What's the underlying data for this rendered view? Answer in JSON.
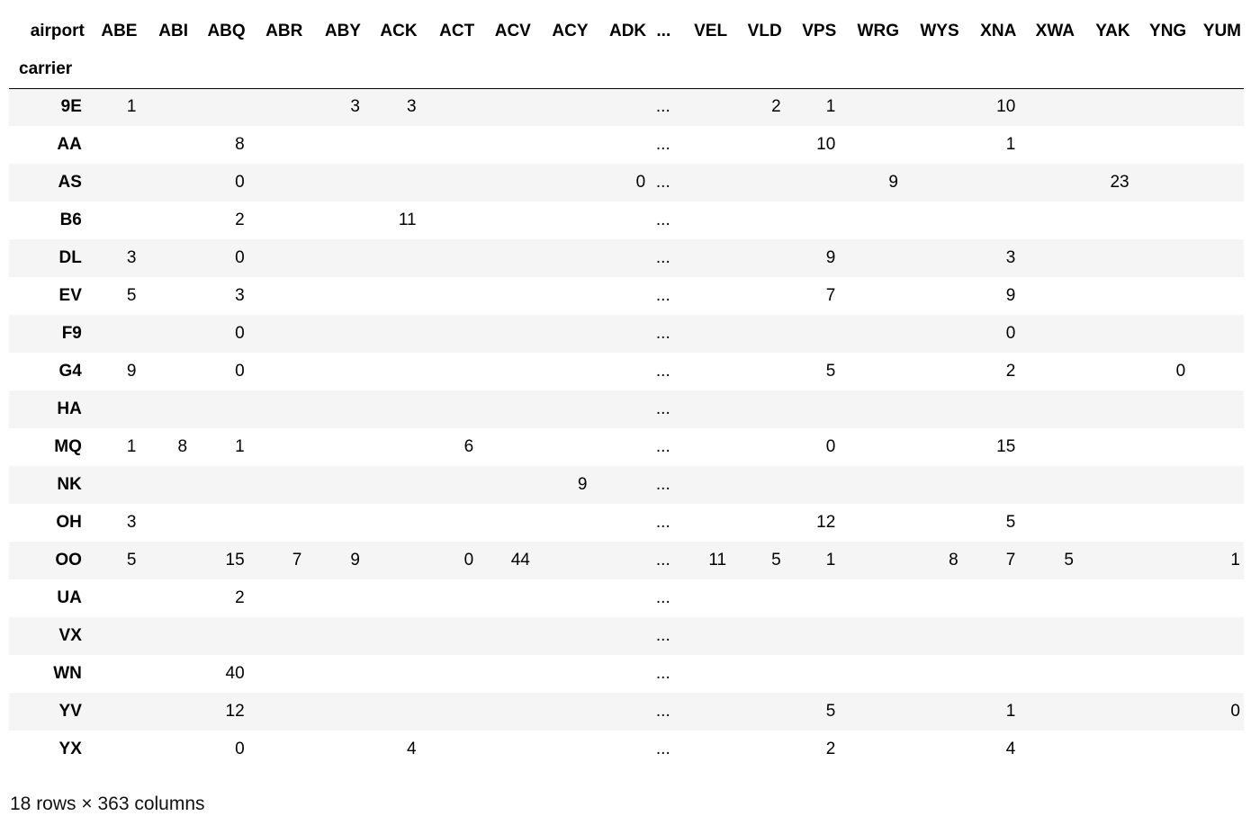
{
  "table": {
    "columns_name": "airport",
    "index_name": "carrier",
    "columns": [
      "ABE",
      "ABI",
      "ABQ",
      "ABR",
      "ABY",
      "ACK",
      "ACT",
      "ACV",
      "ACY",
      "ADK",
      "...",
      "VEL",
      "VLD",
      "VPS",
      "WRG",
      "WYS",
      "XNA",
      "XWA",
      "YAK",
      "YNG",
      "YUM"
    ],
    "rows": [
      {
        "carrier": "9E",
        "values": [
          "1",
          "",
          "",
          "",
          "3",
          "3",
          "",
          "",
          "",
          "",
          "...",
          "",
          "2",
          "1",
          "",
          "",
          "10",
          "",
          "",
          "",
          ""
        ]
      },
      {
        "carrier": "AA",
        "values": [
          "",
          "",
          "8",
          "",
          "",
          "",
          "",
          "",
          "",
          "",
          "...",
          "",
          "",
          "10",
          "",
          "",
          "1",
          "",
          "",
          "",
          ""
        ]
      },
      {
        "carrier": "AS",
        "values": [
          "",
          "",
          "0",
          "",
          "",
          "",
          "",
          "",
          "",
          "0",
          "...",
          "",
          "",
          "",
          "9",
          "",
          "",
          "",
          "23",
          "",
          ""
        ]
      },
      {
        "carrier": "B6",
        "values": [
          "",
          "",
          "2",
          "",
          "",
          "11",
          "",
          "",
          "",
          "",
          "...",
          "",
          "",
          "",
          "",
          "",
          "",
          "",
          "",
          "",
          ""
        ]
      },
      {
        "carrier": "DL",
        "values": [
          "3",
          "",
          "0",
          "",
          "",
          "",
          "",
          "",
          "",
          "",
          "...",
          "",
          "",
          "9",
          "",
          "",
          "3",
          "",
          "",
          "",
          ""
        ]
      },
      {
        "carrier": "EV",
        "values": [
          "5",
          "",
          "3",
          "",
          "",
          "",
          "",
          "",
          "",
          "",
          "...",
          "",
          "",
          "7",
          "",
          "",
          "9",
          "",
          "",
          "",
          ""
        ]
      },
      {
        "carrier": "F9",
        "values": [
          "",
          "",
          "0",
          "",
          "",
          "",
          "",
          "",
          "",
          "",
          "...",
          "",
          "",
          "",
          "",
          "",
          "0",
          "",
          "",
          "",
          ""
        ]
      },
      {
        "carrier": "G4",
        "values": [
          "9",
          "",
          "0",
          "",
          "",
          "",
          "",
          "",
          "",
          "",
          "...",
          "",
          "",
          "5",
          "",
          "",
          "2",
          "",
          "",
          "0",
          ""
        ]
      },
      {
        "carrier": "HA",
        "values": [
          "",
          "",
          "",
          "",
          "",
          "",
          "",
          "",
          "",
          "",
          "...",
          "",
          "",
          "",
          "",
          "",
          "",
          "",
          "",
          "",
          ""
        ]
      },
      {
        "carrier": "MQ",
        "values": [
          "1",
          "8",
          "1",
          "",
          "",
          "",
          "6",
          "",
          "",
          "",
          "...",
          "",
          "",
          "0",
          "",
          "",
          "15",
          "",
          "",
          "",
          ""
        ]
      },
      {
        "carrier": "NK",
        "values": [
          "",
          "",
          "",
          "",
          "",
          "",
          "",
          "",
          "9",
          "",
          "...",
          "",
          "",
          "",
          "",
          "",
          "",
          "",
          "",
          "",
          ""
        ]
      },
      {
        "carrier": "OH",
        "values": [
          "3",
          "",
          "",
          "",
          "",
          "",
          "",
          "",
          "",
          "",
          "...",
          "",
          "",
          "12",
          "",
          "",
          "5",
          "",
          "",
          "",
          ""
        ]
      },
      {
        "carrier": "OO",
        "values": [
          "5",
          "",
          "15",
          "7",
          "9",
          "",
          "0",
          "44",
          "",
          "",
          "...",
          "11",
          "5",
          "1",
          "",
          "8",
          "7",
          "5",
          "",
          "",
          "1"
        ]
      },
      {
        "carrier": "UA",
        "values": [
          "",
          "",
          "2",
          "",
          "",
          "",
          "",
          "",
          "",
          "",
          "...",
          "",
          "",
          "",
          "",
          "",
          "",
          "",
          "",
          "",
          ""
        ]
      },
      {
        "carrier": "VX",
        "values": [
          "",
          "",
          "",
          "",
          "",
          "",
          "",
          "",
          "",
          "",
          "...",
          "",
          "",
          "",
          "",
          "",
          "",
          "",
          "",
          "",
          ""
        ]
      },
      {
        "carrier": "WN",
        "values": [
          "",
          "",
          "40",
          "",
          "",
          "",
          "",
          "",
          "",
          "",
          "...",
          "",
          "",
          "",
          "",
          "",
          "",
          "",
          "",
          "",
          ""
        ]
      },
      {
        "carrier": "YV",
        "values": [
          "",
          "",
          "12",
          "",
          "",
          "",
          "",
          "",
          "",
          "",
          "...",
          "",
          "",
          "5",
          "",
          "",
          "1",
          "",
          "",
          "",
          "0"
        ]
      },
      {
        "carrier": "YX",
        "values": [
          "",
          "",
          "0",
          "",
          "",
          "4",
          "",
          "",
          "",
          "",
          "...",
          "",
          "",
          "2",
          "",
          "",
          "4",
          "",
          "",
          "",
          ""
        ]
      }
    ]
  },
  "shape_note": "18 rows × 363 columns",
  "colors": {
    "stripe": "#f5f5f5",
    "background": "#ffffff",
    "rule": "#000000"
  }
}
